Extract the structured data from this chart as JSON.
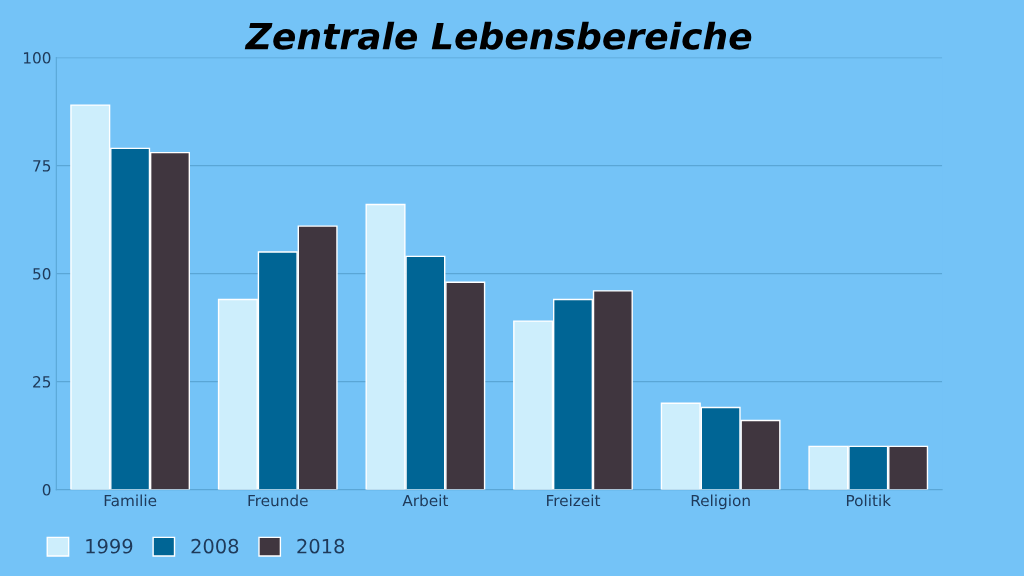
{
  "chart_data": {
    "type": "bar",
    "title": "Zentrale Lebensbereiche",
    "categories": [
      "Familie",
      "Freunde",
      "Arbeit",
      "Freizeit",
      "Religion",
      "Politik"
    ],
    "series": [
      {
        "name": "1999",
        "color": "#cdeefc",
        "values": [
          89,
          44,
          66,
          39,
          20,
          10
        ]
      },
      {
        "name": "2008",
        "color": "#006595",
        "values": [
          79,
          55,
          54,
          44,
          19,
          10
        ]
      },
      {
        "name": "2018",
        "color": "#40363f",
        "values": [
          78,
          61,
          48,
          46,
          16,
          10
        ]
      }
    ],
    "ylim": [
      0,
      100
    ],
    "yticks": [
      0,
      25,
      50,
      75,
      100
    ],
    "grid": "y",
    "legend": "bottom left"
  }
}
